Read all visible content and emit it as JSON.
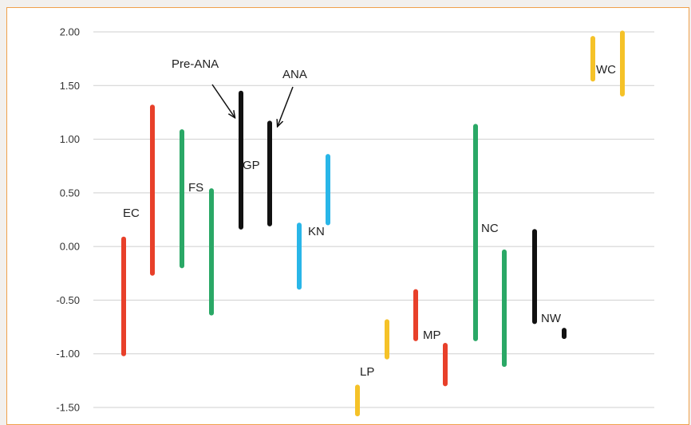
{
  "chart_data": {
    "type": "range",
    "ylim": [
      -1.5,
      2.0
    ],
    "yticks": [
      "2.00",
      "1.50",
      "1.00",
      "0.50",
      "0.00",
      "-0.50",
      "-1.00",
      "-1.50"
    ],
    "grid": true,
    "bars": [
      {
        "x": 155,
        "low": -1.0,
        "high": 0.07,
        "color": "#e8402a"
      },
      {
        "x": 191,
        "low": -0.25,
        "high": 1.3,
        "color": "#e8402a"
      },
      {
        "x": 228,
        "low": -0.18,
        "high": 1.07,
        "color": "#2aa866"
      },
      {
        "x": 265,
        "low": -0.62,
        "high": 0.52,
        "color": "#2aa866"
      },
      {
        "x": 302,
        "low": 0.18,
        "high": 1.43,
        "color": "#111111"
      },
      {
        "x": 338,
        "low": 0.21,
        "high": 1.15,
        "color": "#111111"
      },
      {
        "x": 375,
        "low": -0.38,
        "high": 0.2,
        "color": "#29b6e8"
      },
      {
        "x": 411,
        "low": 0.22,
        "high": 0.84,
        "color": "#29b6e8"
      },
      {
        "x": 448,
        "low": -1.56,
        "high": -1.31,
        "color": "#f5c228"
      },
      {
        "x": 485,
        "low": -1.03,
        "high": -0.7,
        "color": "#f5c228"
      },
      {
        "x": 521,
        "low": -0.86,
        "high": -0.42,
        "color": "#e8402a"
      },
      {
        "x": 558,
        "low": -1.28,
        "high": -0.92,
        "color": "#e8402a"
      },
      {
        "x": 596,
        "low": -0.86,
        "high": 1.12,
        "color": "#2aa866"
      },
      {
        "x": 632,
        "low": -1.1,
        "high": -0.05,
        "color": "#2aa866"
      },
      {
        "x": 670,
        "low": -0.7,
        "high": 0.14,
        "color": "#111111"
      },
      {
        "x": 707,
        "low": -0.84,
        "high": -0.78,
        "color": "#111111"
      },
      {
        "x": 743,
        "low": 1.56,
        "high": 1.94,
        "color": "#f5c228"
      },
      {
        "x": 780,
        "low": 1.42,
        "high": 1.99,
        "color": "#f5c228"
      }
    ],
    "labels": [
      {
        "text": "EC"
      },
      {
        "text": "FS"
      },
      {
        "text": "GP"
      },
      {
        "text": "KN"
      },
      {
        "text": "LP"
      },
      {
        "text": "MP"
      },
      {
        "text": "NC"
      },
      {
        "text": "NW"
      },
      {
        "text": "WC"
      },
      {
        "text": "Pre-ANA"
      },
      {
        "text": "ANA"
      }
    ]
  }
}
